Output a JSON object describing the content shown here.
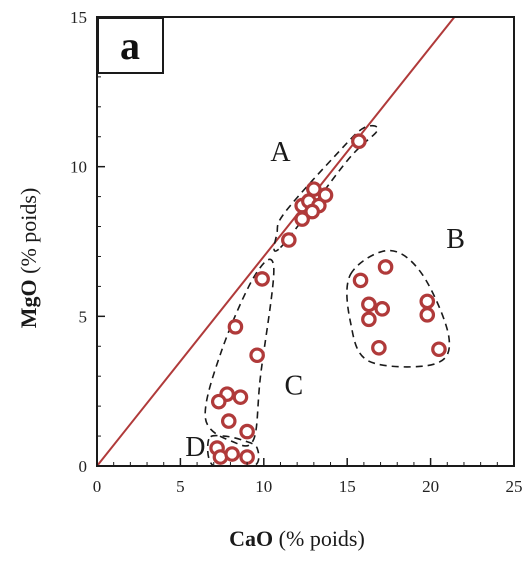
{
  "chart_data": {
    "type": "scatter",
    "panel_label": "a",
    "xlabel_main": "CaO",
    "xlabel_unit": "(% poids)",
    "ylabel_main": "MgO",
    "ylabel_unit": "(% poids)",
    "xlim": [
      0,
      25
    ],
    "ylim": [
      0,
      15
    ],
    "x_ticks": [
      0,
      5,
      10,
      15,
      20,
      25
    ],
    "y_ticks": [
      0,
      5,
      10,
      15
    ],
    "reference_line": {
      "x": [
        0,
        25
      ],
      "y": [
        0,
        17.5
      ]
    },
    "marker_color": "#b03a3a",
    "line_color": "#b03a3a",
    "groups": [
      {
        "label": "A",
        "points": [
          [
            15.7,
            10.85
          ],
          [
            11.5,
            7.55
          ],
          [
            12.3,
            8.25
          ],
          [
            12.3,
            8.7
          ],
          [
            12.7,
            8.85
          ],
          [
            13.0,
            9.25
          ],
          [
            13.7,
            9.05
          ],
          [
            13.3,
            8.7
          ],
          [
            12.9,
            8.5
          ]
        ]
      },
      {
        "label": "B",
        "points": [
          [
            17.3,
            6.65
          ],
          [
            15.8,
            6.2
          ],
          [
            16.3,
            5.4
          ],
          [
            17.1,
            5.25
          ],
          [
            16.3,
            4.9
          ],
          [
            19.8,
            5.5
          ],
          [
            19.8,
            5.05
          ],
          [
            16.9,
            3.95
          ],
          [
            20.5,
            3.9
          ]
        ]
      },
      {
        "label": "C",
        "points": [
          [
            9.9,
            6.25
          ],
          [
            8.3,
            4.65
          ],
          [
            9.6,
            3.7
          ],
          [
            7.8,
            2.4
          ],
          [
            8.6,
            2.3
          ],
          [
            7.3,
            2.15
          ],
          [
            7.9,
            1.5
          ],
          [
            9.0,
            1.15
          ]
        ]
      },
      {
        "label": "D",
        "points": [
          [
            7.2,
            0.6
          ],
          [
            7.4,
            0.3
          ],
          [
            8.1,
            0.4
          ],
          [
            9.0,
            0.3
          ]
        ]
      }
    ],
    "group_label_positions": {
      "A": [
        11.0,
        10.4
      ],
      "B": [
        21.5,
        7.5
      ],
      "C": [
        11.8,
        2.6
      ],
      "D": [
        5.9,
        0.55
      ]
    },
    "cluster_outlines": {
      "A": [
        [
          11.0,
          7.3
        ],
        [
          15.0,
          10.2
        ],
        [
          16.8,
          11.2
        ],
        [
          16.0,
          11.3
        ],
        [
          14.5,
          10.5
        ],
        [
          11.3,
          8.5
        ],
        [
          10.8,
          7.8
        ]
      ],
      "B": [
        [
          15.2,
          6.4
        ],
        [
          17.5,
          7.2
        ],
        [
          19.5,
          6.4
        ],
        [
          21.1,
          4.3
        ],
        [
          20.2,
          3.4
        ],
        [
          16.3,
          3.5
        ],
        [
          15.2,
          4.8
        ]
      ],
      "C": [
        [
          10.6,
          6.6
        ],
        [
          9.8,
          3.0
        ],
        [
          9.4,
          0.9
        ],
        [
          8.2,
          0.8
        ],
        [
          6.5,
          1.6
        ],
        [
          7.5,
          3.9
        ],
        [
          9.5,
          6.4
        ]
      ],
      "D": [
        [
          6.7,
          0.9
        ],
        [
          7.0,
          0.0
        ],
        [
          9.4,
          0.0
        ],
        [
          9.6,
          0.6
        ],
        [
          8.8,
          0.85
        ],
        [
          7.6,
          1.0
        ]
      ]
    }
  }
}
